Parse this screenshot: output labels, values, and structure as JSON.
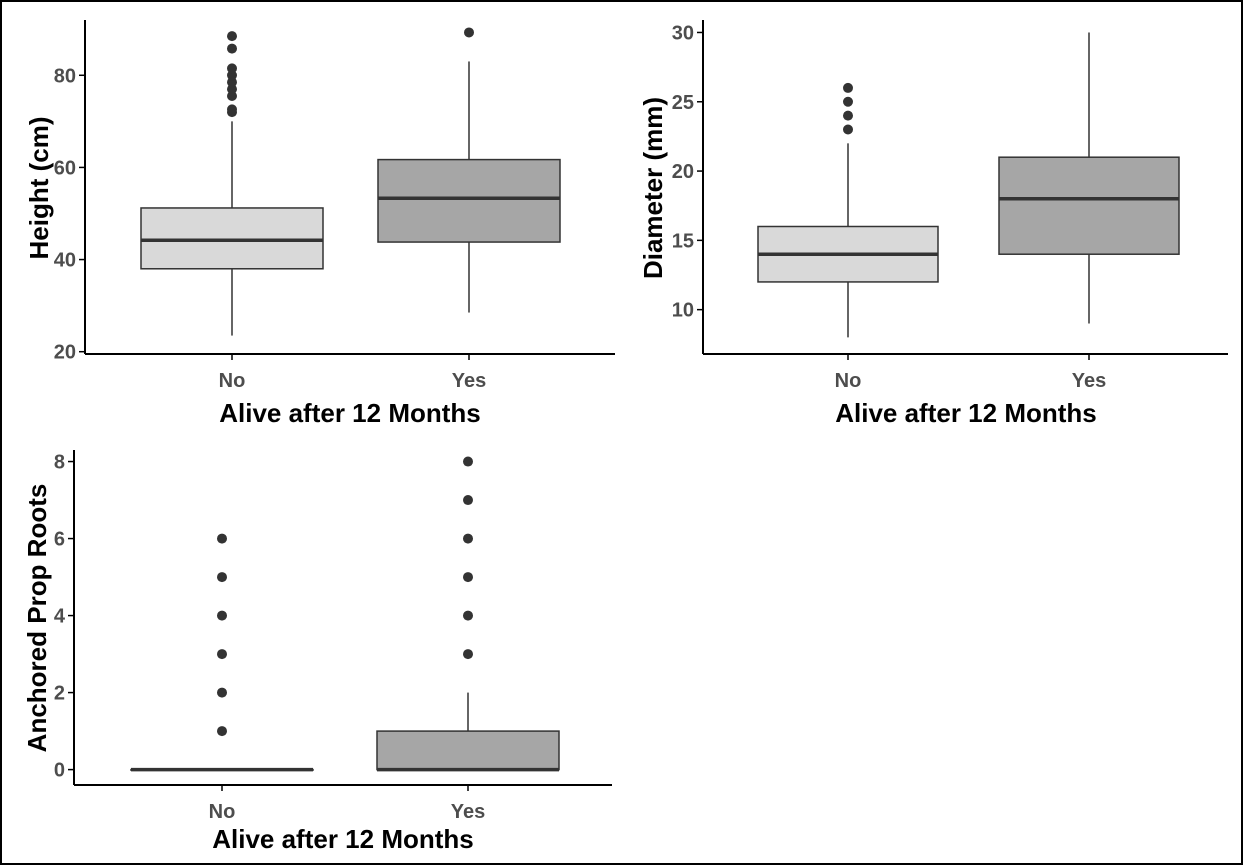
{
  "chart_data": [
    {
      "type": "box",
      "xlabel": "Alive after 12 Months",
      "ylabel": "Height (cm)",
      "categories": [
        "No",
        "Yes"
      ],
      "yticks": [
        20,
        40,
        60,
        80
      ],
      "ylim": [
        19.5,
        92
      ],
      "boxes": [
        {
          "category": "No",
          "whisker_low": 23.5,
          "q1": 38,
          "median": 44.2,
          "q3": 51.2,
          "whisker_high": 70,
          "outliers": [
            72,
            72.6,
            75.5,
            77,
            78.5,
            80,
            81.5,
            85.8,
            88.5
          ],
          "fill": "#d9d9d9"
        },
        {
          "category": "Yes",
          "whisker_low": 28.5,
          "q1": 43.8,
          "median": 53.3,
          "q3": 61.7,
          "whisker_high": 83,
          "outliers": [
            89.3
          ],
          "fill": "#a6a6a6"
        }
      ]
    },
    {
      "type": "box",
      "xlabel": "Alive after 12 Months",
      "ylabel": "Diameter (mm)",
      "categories": [
        "No",
        "Yes"
      ],
      "yticks": [
        10,
        15,
        20,
        25,
        30
      ],
      "ylim": [
        6.8,
        30.9
      ],
      "boxes": [
        {
          "category": "No",
          "whisker_low": 8,
          "q1": 12,
          "median": 14,
          "q3": 16,
          "whisker_high": 22,
          "outliers": [
            23,
            24,
            25,
            26
          ],
          "fill": "#d9d9d9"
        },
        {
          "category": "Yes",
          "whisker_low": 9,
          "q1": 14,
          "median": 18,
          "q3": 21,
          "whisker_high": 30,
          "outliers": [],
          "fill": "#a6a6a6"
        }
      ]
    },
    {
      "type": "box",
      "xlabel": "Alive after 12 Months",
      "ylabel": "Anchored Prop Roots",
      "categories": [
        "No",
        "Yes"
      ],
      "yticks": [
        0,
        2,
        4,
        6,
        8
      ],
      "ylim": [
        -0.4,
        8.3
      ],
      "boxes": [
        {
          "category": "No",
          "whisker_low": 0,
          "q1": 0,
          "median": 0,
          "q3": 0,
          "whisker_high": 0,
          "outliers": [
            1,
            2,
            3,
            4,
            5,
            6
          ],
          "fill": "#d9d9d9"
        },
        {
          "category": "Yes",
          "whisker_low": 0,
          "q1": 0,
          "median": 0,
          "q3": 1,
          "whisker_high": 2,
          "outliers": [
            3,
            4,
            5,
            6,
            7,
            8
          ],
          "fill": "#a6a6a6"
        }
      ]
    }
  ]
}
